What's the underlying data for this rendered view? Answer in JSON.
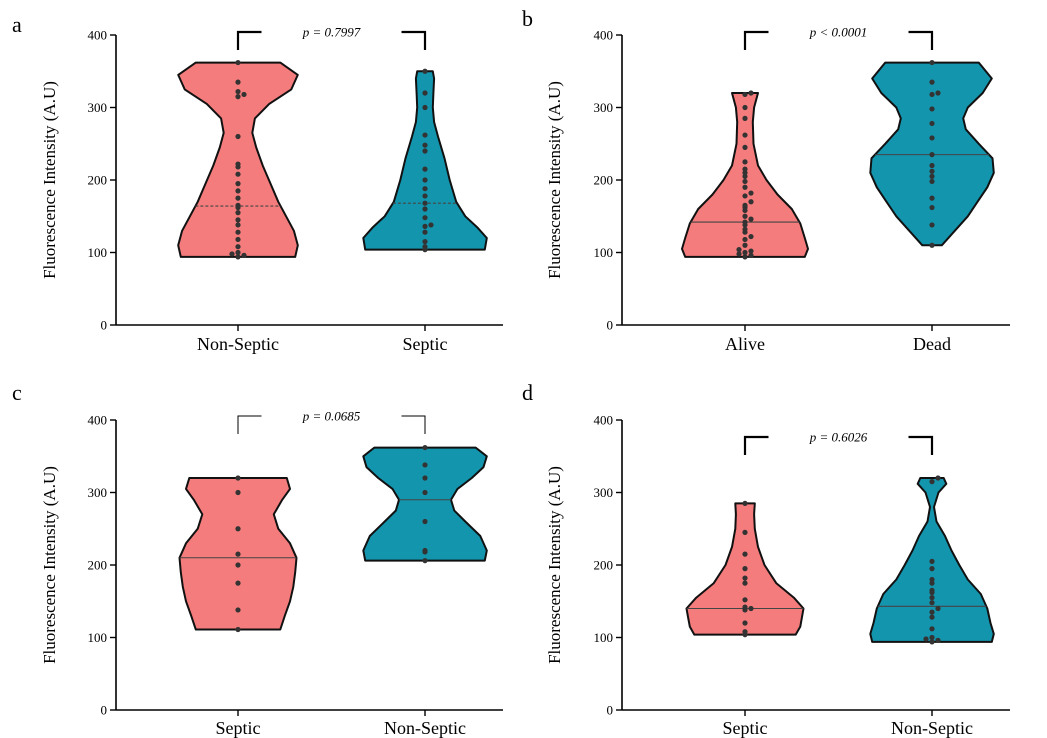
{
  "colors": {
    "group1": "#F47C7C",
    "group2": "#1495AE",
    "dot": "#333333"
  },
  "chart_data": [
    {
      "panel": "a",
      "type": "violin",
      "ylabel": "Fluorescence Intensity (A.U)",
      "ylim": [
        0,
        400
      ],
      "yticks": [
        "0",
        "100",
        "200",
        "300",
        "400"
      ],
      "categories": [
        "Non-Septic",
        "Septic"
      ],
      "p_value_label": "p = 0.7997",
      "median_style": "dashed",
      "groups": [
        {
          "name": "Non-Septic",
          "color": "#F47C7C",
          "min": 94,
          "max": 362,
          "median": 164,
          "shape": [
            [
              94,
              0.88
            ],
            [
              110,
              0.92
            ],
            [
              130,
              0.86
            ],
            [
              150,
              0.74
            ],
            [
              170,
              0.62
            ],
            [
              195,
              0.5
            ],
            [
              220,
              0.38
            ],
            [
              245,
              0.28
            ],
            [
              265,
              0.22
            ],
            [
              285,
              0.26
            ],
            [
              305,
              0.48
            ],
            [
              325,
              0.82
            ],
            [
              345,
              0.92
            ],
            [
              362,
              0.65
            ]
          ],
          "points": [
            94,
            96,
            98,
            100,
            108,
            118,
            128,
            138,
            145,
            155,
            162,
            165,
            175,
            185,
            195,
            208,
            218,
            222,
            260,
            315,
            318,
            322,
            335,
            362
          ]
        },
        {
          "name": "Septic",
          "color": "#1495AE",
          "min": 104,
          "max": 350,
          "median": 168,
          "shape": [
            [
              104,
              0.92
            ],
            [
              120,
              0.95
            ],
            [
              135,
              0.8
            ],
            [
              150,
              0.62
            ],
            [
              170,
              0.48
            ],
            [
              200,
              0.38
            ],
            [
              230,
              0.3
            ],
            [
              260,
              0.2
            ],
            [
              280,
              0.14
            ],
            [
              300,
              0.12
            ],
            [
              320,
              0.13
            ],
            [
              340,
              0.14
            ],
            [
              350,
              0.12
            ]
          ],
          "points": [
            104,
            108,
            115,
            128,
            136,
            138,
            148,
            160,
            168,
            178,
            188,
            200,
            215,
            240,
            248,
            262,
            300,
            320,
            350
          ]
        }
      ]
    },
    {
      "panel": "b",
      "type": "violin",
      "ylabel": "Fluorescence Intensity (A.U)",
      "ylim": [
        0,
        400
      ],
      "yticks": [
        "0",
        "100",
        "200",
        "300",
        "400"
      ],
      "categories": [
        "Alive",
        "Dead"
      ],
      "p_value_label": "p < 0.0001",
      "median_style": "solid",
      "groups": [
        {
          "name": "Alive",
          "color": "#F47C7C",
          "min": 94,
          "max": 320,
          "median": 142,
          "shape": [
            [
              94,
              0.92
            ],
            [
              105,
              0.97
            ],
            [
              120,
              0.92
            ],
            [
              140,
              0.85
            ],
            [
              160,
              0.72
            ],
            [
              180,
              0.5
            ],
            [
              200,
              0.33
            ],
            [
              220,
              0.2
            ],
            [
              250,
              0.13
            ],
            [
              280,
              0.12
            ],
            [
              300,
              0.14
            ],
            [
              320,
              0.2
            ]
          ],
          "points": [
            94,
            96,
            98,
            100,
            102,
            104,
            110,
            118,
            122,
            128,
            132,
            138,
            142,
            146,
            150,
            158,
            162,
            165,
            170,
            178,
            182,
            190,
            198,
            205,
            210,
            215,
            225,
            245,
            262,
            285,
            300,
            318,
            320
          ]
        },
        {
          "name": "Dead",
          "color": "#1495AE",
          "min": 110,
          "max": 362,
          "median": 235,
          "shape": [
            [
              110,
              0.15
            ],
            [
              130,
              0.35
            ],
            [
              150,
              0.55
            ],
            [
              170,
              0.7
            ],
            [
              190,
              0.85
            ],
            [
              210,
              0.95
            ],
            [
              230,
              0.93
            ],
            [
              250,
              0.72
            ],
            [
              270,
              0.52
            ],
            [
              285,
              0.48
            ],
            [
              300,
              0.55
            ],
            [
              320,
              0.78
            ],
            [
              340,
              0.92
            ],
            [
              362,
              0.72
            ]
          ],
          "points": [
            110,
            138,
            162,
            175,
            198,
            205,
            212,
            220,
            235,
            258,
            278,
            298,
            318,
            320,
            335,
            362
          ]
        }
      ]
    },
    {
      "panel": "c",
      "type": "violin",
      "ylabel": "Fluorescence Intensity (A.U)",
      "ylim": [
        0,
        400
      ],
      "yticks": [
        "0",
        "100",
        "200",
        "300",
        "400"
      ],
      "categories": [
        "Septic",
        "Non-Septic"
      ],
      "p_value_label": "p = 0.0685",
      "median_style": "solid",
      "groups": [
        {
          "name": "Septic",
          "color": "#F47C7C",
          "min": 111,
          "max": 320,
          "median": 210,
          "shape": [
            [
              111,
              0.65
            ],
            [
              130,
              0.72
            ],
            [
              150,
              0.8
            ],
            [
              170,
              0.85
            ],
            [
              190,
              0.88
            ],
            [
              210,
              0.9
            ],
            [
              230,
              0.8
            ],
            [
              250,
              0.62
            ],
            [
              270,
              0.55
            ],
            [
              290,
              0.68
            ],
            [
              305,
              0.8
            ],
            [
              320,
              0.75
            ]
          ],
          "points": [
            111,
            138,
            175,
            200,
            215,
            250,
            300,
            320
          ]
        },
        {
          "name": "Non-Septic",
          "color": "#1495AE",
          "min": 206,
          "max": 362,
          "median": 290,
          "shape": [
            [
              206,
              0.92
            ],
            [
              220,
              0.95
            ],
            [
              240,
              0.85
            ],
            [
              260,
              0.62
            ],
            [
              275,
              0.45
            ],
            [
              290,
              0.4
            ],
            [
              305,
              0.5
            ],
            [
              320,
              0.72
            ],
            [
              335,
              0.9
            ],
            [
              350,
              0.95
            ],
            [
              362,
              0.78
            ]
          ],
          "points": [
            206,
            218,
            220,
            260,
            300,
            320,
            338,
            362
          ]
        }
      ]
    },
    {
      "panel": "d",
      "type": "violin",
      "ylabel": "Fluorescence Intensity (A.U)",
      "ylim": [
        0,
        400
      ],
      "yticks": [
        "0",
        "100",
        "200",
        "300",
        "400"
      ],
      "categories": [
        "Septic",
        "Non-Septic"
      ],
      "p_value_label": "p = 0.6026",
      "median_style": "solid",
      "groups": [
        {
          "name": "Septic",
          "color": "#F47C7C",
          "min": 104,
          "max": 285,
          "median": 140,
          "shape": [
            [
              104,
              0.78
            ],
            [
              115,
              0.85
            ],
            [
              130,
              0.88
            ],
            [
              140,
              0.9
            ],
            [
              155,
              0.75
            ],
            [
              175,
              0.48
            ],
            [
              200,
              0.3
            ],
            [
              225,
              0.2
            ],
            [
              250,
              0.15
            ],
            [
              270,
              0.14
            ],
            [
              285,
              0.15
            ]
          ],
          "points": [
            104,
            108,
            120,
            138,
            140,
            142,
            152,
            175,
            182,
            195,
            215,
            245,
            285
          ]
        },
        {
          "name": "Non-Septic",
          "color": "#1495AE",
          "min": 94,
          "max": 320,
          "median": 143,
          "shape": [
            [
              94,
              0.92
            ],
            [
              105,
              0.95
            ],
            [
              120,
              0.9
            ],
            [
              140,
              0.85
            ],
            [
              160,
              0.75
            ],
            [
              180,
              0.55
            ],
            [
              200,
              0.42
            ],
            [
              220,
              0.3
            ],
            [
              240,
              0.2
            ],
            [
              260,
              0.07
            ],
            [
              280,
              0.03
            ],
            [
              300,
              0.1
            ],
            [
              312,
              0.22
            ],
            [
              320,
              0.18
            ]
          ],
          "points": [
            94,
            96,
            98,
            100,
            112,
            128,
            135,
            140,
            148,
            155,
            162,
            165,
            175,
            180,
            195,
            205,
            315,
            320
          ]
        }
      ]
    }
  ]
}
